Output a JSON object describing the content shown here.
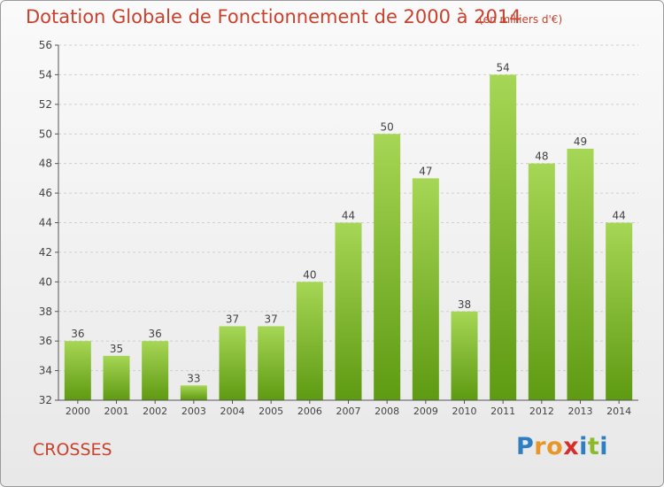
{
  "header": {
    "title": "Dotation Globale de Fonctionnement de 2000 à 2014",
    "unit": "(en milliers d'€)"
  },
  "footer": {
    "commune": "CROSSES",
    "logo_text": "Proxiti"
  },
  "colors": {
    "title": "#c8422e",
    "bar_light": "#a6d655",
    "bar_dark": "#5e9a12",
    "logo_blue": "#2e7fc1",
    "logo_orange": "#e8952a",
    "logo_red": "#d3302a",
    "logo_green": "#8bbb2b"
  },
  "chart_data": {
    "type": "bar",
    "title": "Dotation Globale de Fonctionnement de 2000 à 2014",
    "subtitle": "(en milliers d'€)",
    "categories": [
      "2000",
      "2001",
      "2002",
      "2003",
      "2004",
      "2005",
      "2006",
      "2007",
      "2008",
      "2009",
      "2010",
      "2011",
      "2012",
      "2013",
      "2014"
    ],
    "values": [
      36,
      35,
      36,
      33,
      37,
      37,
      40,
      44,
      50,
      47,
      38,
      54,
      48,
      49,
      44
    ],
    "ylim": [
      32,
      56
    ],
    "yticks": [
      32,
      34,
      36,
      38,
      40,
      42,
      44,
      46,
      48,
      50,
      52,
      54,
      56
    ],
    "grid": true,
    "data_labels": true
  }
}
